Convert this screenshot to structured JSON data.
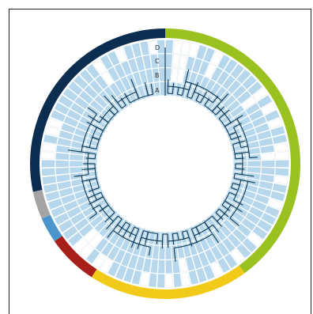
{
  "ring_labels": [
    "A",
    "B",
    "C",
    "D"
  ],
  "colors": {
    "cell_fill": "#b7d8ec",
    "cell_empty": "#ffffff",
    "cell_stroke": "#ffffff",
    "tree_stroke": "#123a52",
    "segment_navy": "#0b2d4f",
    "segment_green": "#99c11f",
    "segment_yellow": "#f2cb1a",
    "segment_red": "#a81e18",
    "segment_blue": "#4a95cc",
    "segment_gray": "#a4a4a4"
  },
  "outer_segments": [
    {
      "name": "green",
      "start": 0,
      "end": 144,
      "color": "#99c11f"
    },
    {
      "name": "yellow",
      "start": 144,
      "end": 213,
      "color": "#f2cb1a"
    },
    {
      "name": "red",
      "start": 213,
      "end": 235,
      "color": "#a81e18"
    },
    {
      "name": "blue",
      "start": 235,
      "end": 246,
      "color": "#4a95cc"
    },
    {
      "name": "gray",
      "start": 246,
      "end": 258,
      "color": "#a4a4a4"
    },
    {
      "name": "navy",
      "start": 258,
      "end": 360,
      "color": "#0b2d4f"
    }
  ]
}
